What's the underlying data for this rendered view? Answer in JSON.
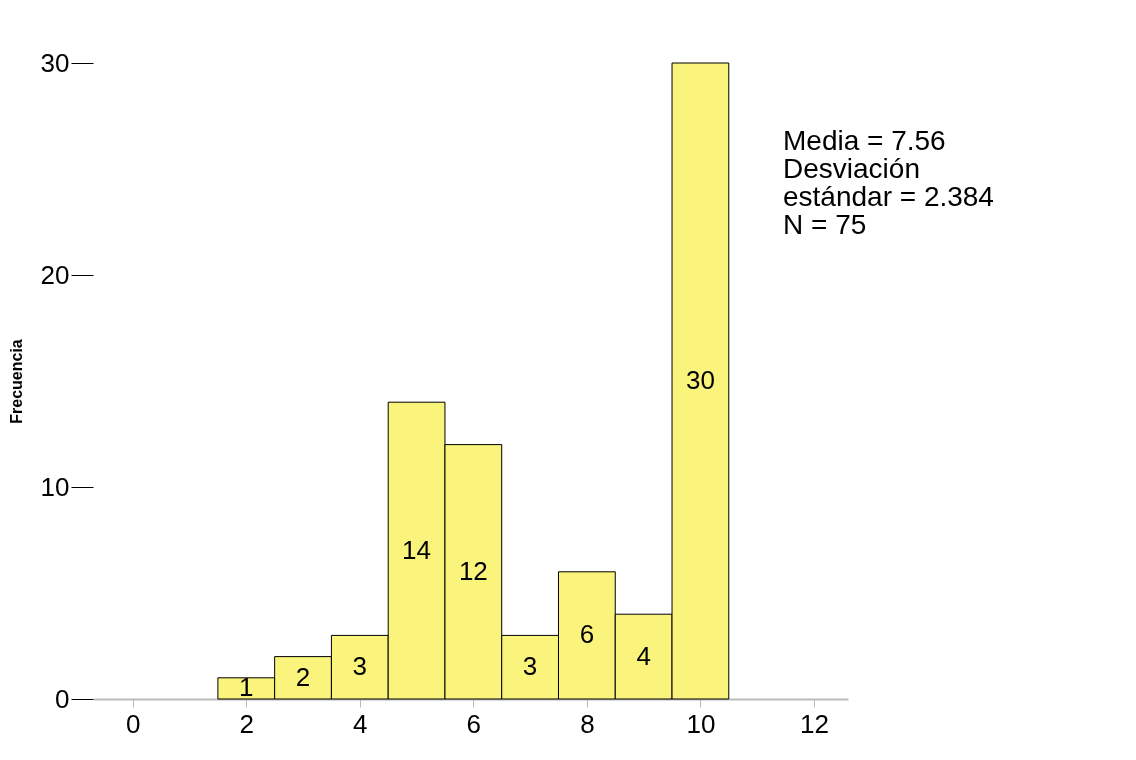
{
  "chart_data": {
    "type": "histogram",
    "ylabel": "Frecuencia",
    "bins": [
      1.5,
      2.5,
      3.5,
      4.5,
      5.5,
      6.5,
      7.5,
      8.5,
      9.5,
      10.5
    ],
    "values": [
      1,
      2,
      3,
      14,
      12,
      3,
      6,
      4,
      30
    ],
    "color": "#faf47c",
    "xlim": [
      -0.7,
      12.6
    ],
    "xticks": [
      0,
      2,
      4,
      6,
      8,
      10,
      12
    ],
    "ylim": [
      0,
      30
    ],
    "yticks": [
      0,
      10,
      20,
      30
    ],
    "grid": false,
    "data_labels": true,
    "annotations": [
      "Media = 7.56",
      "Desviación estándar = 2.384",
      "N = 75"
    ]
  }
}
